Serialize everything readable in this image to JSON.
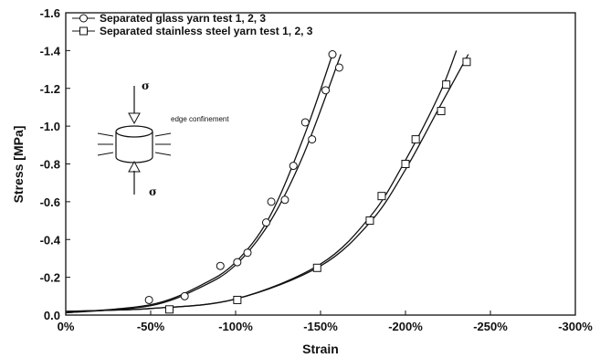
{
  "chart_data": {
    "type": "scatter",
    "title": "",
    "xlabel": "Strain",
    "ylabel": "Stress [MPa]",
    "xlim": [
      0,
      -300
    ],
    "ylim": [
      0,
      -1.6
    ],
    "x_unit": "%",
    "x_ticks": [
      "0%",
      "-50%",
      "-100%",
      "-150%",
      "-200%",
      "-250%",
      "-300%"
    ],
    "y_ticks": [
      "0.0",
      "-0.2",
      "-0.4",
      "-0.6",
      "-0.8",
      "-1.0",
      "-1.2",
      "-1.4",
      "-1.6"
    ],
    "legend_placement": "top-left",
    "grid": false,
    "series": [
      {
        "name": "Separated glass yarn test 1, 2, 3",
        "marker": "circle",
        "points": [
          [
            -49,
            -0.08
          ],
          [
            -70,
            -0.1
          ],
          [
            -91,
            -0.26
          ],
          [
            -101,
            -0.28
          ],
          [
            -107,
            -0.33
          ],
          [
            -118,
            -0.49
          ],
          [
            -121,
            -0.6
          ],
          [
            -129,
            -0.61
          ],
          [
            -134,
            -0.79
          ],
          [
            -141,
            -1.02
          ],
          [
            -145,
            -0.93
          ],
          [
            -153,
            -1.19
          ],
          [
            -157,
            -1.38
          ],
          [
            -161,
            -1.31
          ]
        ],
        "fit_lines": [
          [
            [
              0,
              -0.012
            ],
            [
              -50,
              -0.055
            ],
            [
              -80,
              -0.16
            ],
            [
              -100,
              -0.28
            ],
            [
              -120,
              -0.52
            ],
            [
              -140,
              -0.94
            ],
            [
              -157,
              -1.38
            ]
          ],
          [
            [
              0,
              -0.012
            ],
            [
              -50,
              -0.05
            ],
            [
              -80,
              -0.15
            ],
            [
              -100,
              -0.265
            ],
            [
              -120,
              -0.49
            ],
            [
              -140,
              -0.85
            ],
            [
              -162,
              -1.38
            ]
          ]
        ]
      },
      {
        "name": "Separated stainless steel yarn test 1, 2, 3",
        "marker": "square",
        "points": [
          [
            -61,
            -0.03
          ],
          [
            -101,
            -0.08
          ],
          [
            -148,
            -0.25
          ],
          [
            -179,
            -0.5
          ],
          [
            -186,
            -0.63
          ],
          [
            -200,
            -0.8
          ],
          [
            -206,
            -0.93
          ],
          [
            -221,
            -1.08
          ],
          [
            -224,
            -1.22
          ],
          [
            -236,
            -1.34
          ]
        ],
        "fit_lines": [
          [
            [
              0,
              -0.02
            ],
            [
              -50,
              -0.035
            ],
            [
              -100,
              -0.085
            ],
            [
              -150,
              -0.27
            ],
            [
              -180,
              -0.53
            ],
            [
              -200,
              -0.82
            ],
            [
              -220,
              -1.17
            ],
            [
              -230,
              -1.4
            ]
          ],
          [
            [
              0,
              -0.02
            ],
            [
              -50,
              -0.035
            ],
            [
              -100,
              -0.085
            ],
            [
              -150,
              -0.26
            ],
            [
              -180,
              -0.5
            ],
            [
              -200,
              -0.77
            ],
            [
              -220,
              -1.1
            ],
            [
              -237,
              -1.38
            ]
          ]
        ]
      }
    ],
    "annotations": {
      "sigma_top": "σ",
      "sigma_bottom": "σ",
      "edge_label": "edge confinement"
    }
  }
}
